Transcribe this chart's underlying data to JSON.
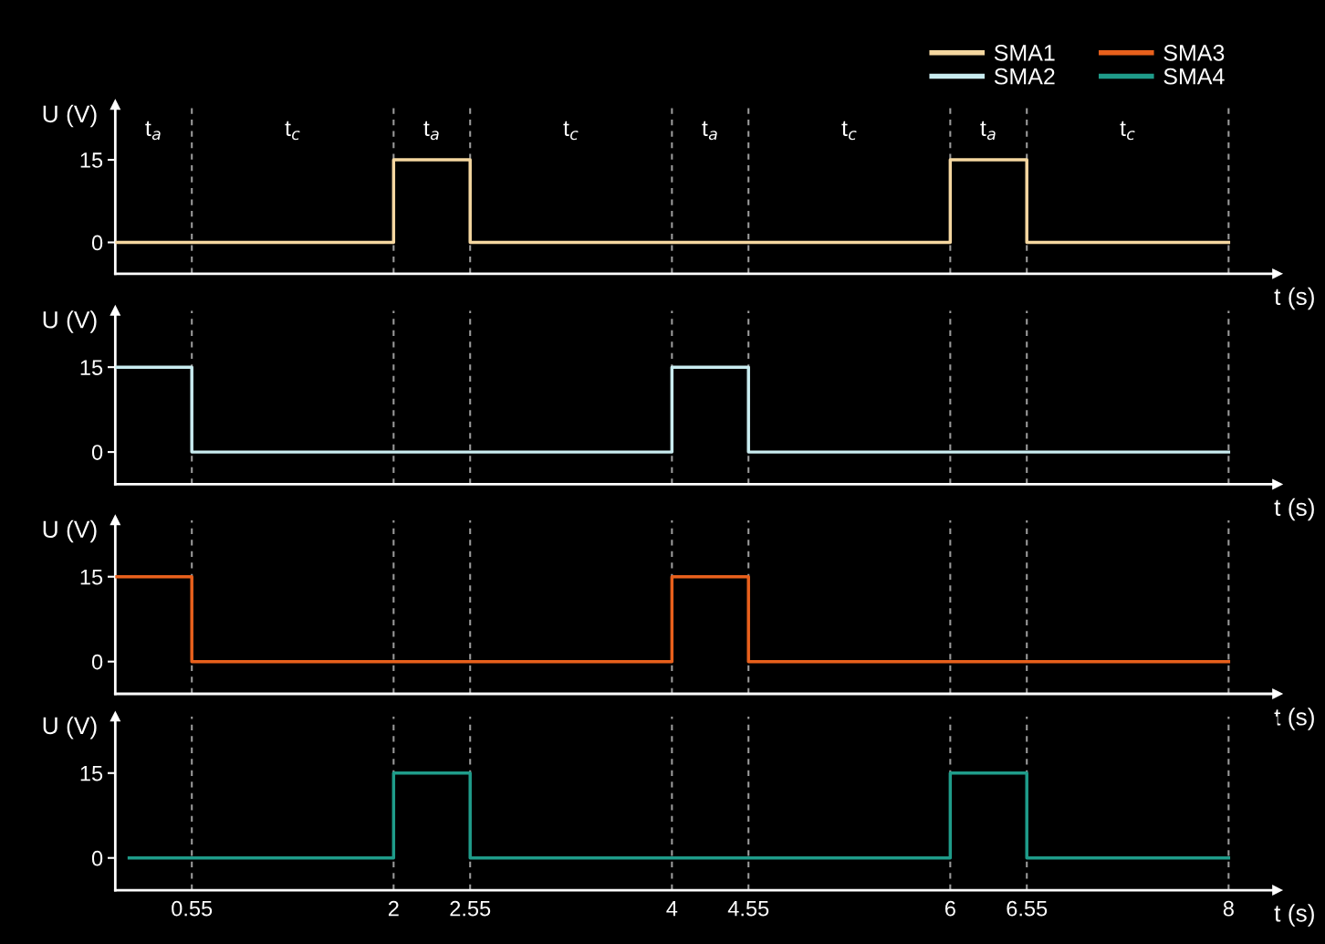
{
  "chart_data": [
    {
      "type": "step",
      "xlabel": "t (s)",
      "ylabel": "U (V)",
      "xlim": [
        0,
        8.35
      ],
      "ylim": [
        -5.7,
        25
      ],
      "yticks": [
        0,
        15
      ],
      "tick_labels": "y",
      "legend": "top right",
      "series": [
        {
          "name": "SMA1",
          "color": "#f5d7a0",
          "x": [
            0,
            2,
            2.55,
            6,
            6.55,
            8
          ],
          "values": [
            0,
            15,
            0,
            15,
            0,
            0
          ]
        }
      ],
      "ref_lines": [
        {
          "axis": "x",
          "value": 0.55,
          "color": "#9a9a9a",
          "line_style": "dashed"
        },
        {
          "axis": "x",
          "value": 2,
          "color": "#9a9a9a",
          "line_style": "dashed"
        },
        {
          "axis": "x",
          "value": 2.55,
          "color": "#9a9a9a",
          "line_style": "dashed"
        },
        {
          "axis": "x",
          "value": 4,
          "color": "#9a9a9a",
          "line_style": "dashed"
        },
        {
          "axis": "x",
          "value": 4.55,
          "color": "#9a9a9a",
          "line_style": "dashed"
        },
        {
          "axis": "x",
          "value": 6,
          "color": "#9a9a9a",
          "line_style": "dashed"
        },
        {
          "axis": "x",
          "value": 6.55,
          "color": "#9a9a9a",
          "line_style": "dashed"
        },
        {
          "axis": "x",
          "value": 8,
          "color": "#9a9a9a",
          "line_style": "dashed"
        }
      ],
      "annotations": [
        "t$_{a}$",
        "t$_{c}$",
        "t$_{a}$",
        "t$_{c}$",
        "t$_{a}$",
        "t$_{c}$",
        "t$_{a}$",
        "t$_{c}$"
      ]
    },
    {
      "type": "step",
      "xlabel": "t (s)",
      "ylabel": "U (V)",
      "xlim": [
        0,
        8.35
      ],
      "ylim": [
        -5.7,
        25
      ],
      "yticks": [
        0,
        15
      ],
      "tick_labels": "y",
      "series": [
        {
          "name": "SMA2",
          "color": "#c9ecf0",
          "x": [
            0,
            0.55,
            4,
            4.55,
            8
          ],
          "values": [
            15,
            0,
            15,
            0,
            0
          ]
        }
      ],
      "ref_lines": [
        {
          "axis": "x",
          "value": 0.55,
          "color": "#9a9a9a",
          "line_style": "dashed"
        },
        {
          "axis": "x",
          "value": 2,
          "color": "#9a9a9a",
          "line_style": "dashed"
        },
        {
          "axis": "x",
          "value": 2.55,
          "color": "#9a9a9a",
          "line_style": "dashed"
        },
        {
          "axis": "x",
          "value": 4,
          "color": "#9a9a9a",
          "line_style": "dashed"
        },
        {
          "axis": "x",
          "value": 4.55,
          "color": "#9a9a9a",
          "line_style": "dashed"
        },
        {
          "axis": "x",
          "value": 6,
          "color": "#9a9a9a",
          "line_style": "dashed"
        },
        {
          "axis": "x",
          "value": 6.55,
          "color": "#9a9a9a",
          "line_style": "dashed"
        },
        {
          "axis": "x",
          "value": 8,
          "color": "#9a9a9a",
          "line_style": "dashed"
        }
      ]
    },
    {
      "type": "step",
      "xlabel": "t (s)",
      "ylabel": "U (V)",
      "xlim": [
        0,
        8.35
      ],
      "ylim": [
        -5.7,
        25
      ],
      "yticks": [
        0,
        15
      ],
      "tick_labels": "y",
      "series": [
        {
          "name": "SMA3",
          "color": "#e8601c",
          "x": [
            0,
            0.55,
            4,
            4.55,
            8
          ],
          "values": [
            15,
            0,
            15,
            0,
            0
          ]
        }
      ],
      "ref_lines": [
        {
          "axis": "x",
          "value": 0.55,
          "color": "#9a9a9a",
          "line_style": "dashed"
        },
        {
          "axis": "x",
          "value": 2,
          "color": "#9a9a9a",
          "line_style": "dashed"
        },
        {
          "axis": "x",
          "value": 2.55,
          "color": "#9a9a9a",
          "line_style": "dashed"
        },
        {
          "axis": "x",
          "value": 4,
          "color": "#9a9a9a",
          "line_style": "dashed"
        },
        {
          "axis": "x",
          "value": 4.55,
          "color": "#9a9a9a",
          "line_style": "dashed"
        },
        {
          "axis": "x",
          "value": 6,
          "color": "#9a9a9a",
          "line_style": "dashed"
        },
        {
          "axis": "x",
          "value": 6.55,
          "color": "#9a9a9a",
          "line_style": "dashed"
        },
        {
          "axis": "x",
          "value": 8,
          "color": "#9a9a9a",
          "line_style": "dashed"
        }
      ]
    },
    {
      "type": "step",
      "xlabel": "t (s)",
      "ylabel": "U (V)",
      "xlim": [
        0,
        8.35
      ],
      "ylim": [
        -5.7,
        25
      ],
      "yticks": [
        0,
        15
      ],
      "xticks": [
        0.55,
        2,
        2.55,
        4,
        4.55,
        6,
        6.55,
        8
      ],
      "series": [
        {
          "name": "SMA4",
          "color": "#1f9c8a",
          "x": [
            0.1,
            2,
            2.55,
            6,
            6.55,
            8
          ],
          "values": [
            0,
            15,
            0,
            15,
            0,
            0
          ]
        }
      ],
      "ref_lines": [
        {
          "axis": "x",
          "value": 0.55,
          "color": "#9a9a9a",
          "line_style": "dashed"
        },
        {
          "axis": "x",
          "value": 2,
          "color": "#9a9a9a",
          "line_style": "dashed"
        },
        {
          "axis": "x",
          "value": 2.55,
          "color": "#9a9a9a",
          "line_style": "dashed"
        },
        {
          "axis": "x",
          "value": 4,
          "color": "#9a9a9a",
          "line_style": "dashed"
        },
        {
          "axis": "x",
          "value": 4.55,
          "color": "#9a9a9a",
          "line_style": "dashed"
        },
        {
          "axis": "x",
          "value": 6,
          "color": "#9a9a9a",
          "line_style": "dashed"
        },
        {
          "axis": "x",
          "value": 6.55,
          "color": "#9a9a9a",
          "line_style": "dashed"
        },
        {
          "axis": "x",
          "value": 8,
          "color": "#9a9a9a",
          "line_style": "dashed"
        }
      ]
    }
  ]
}
